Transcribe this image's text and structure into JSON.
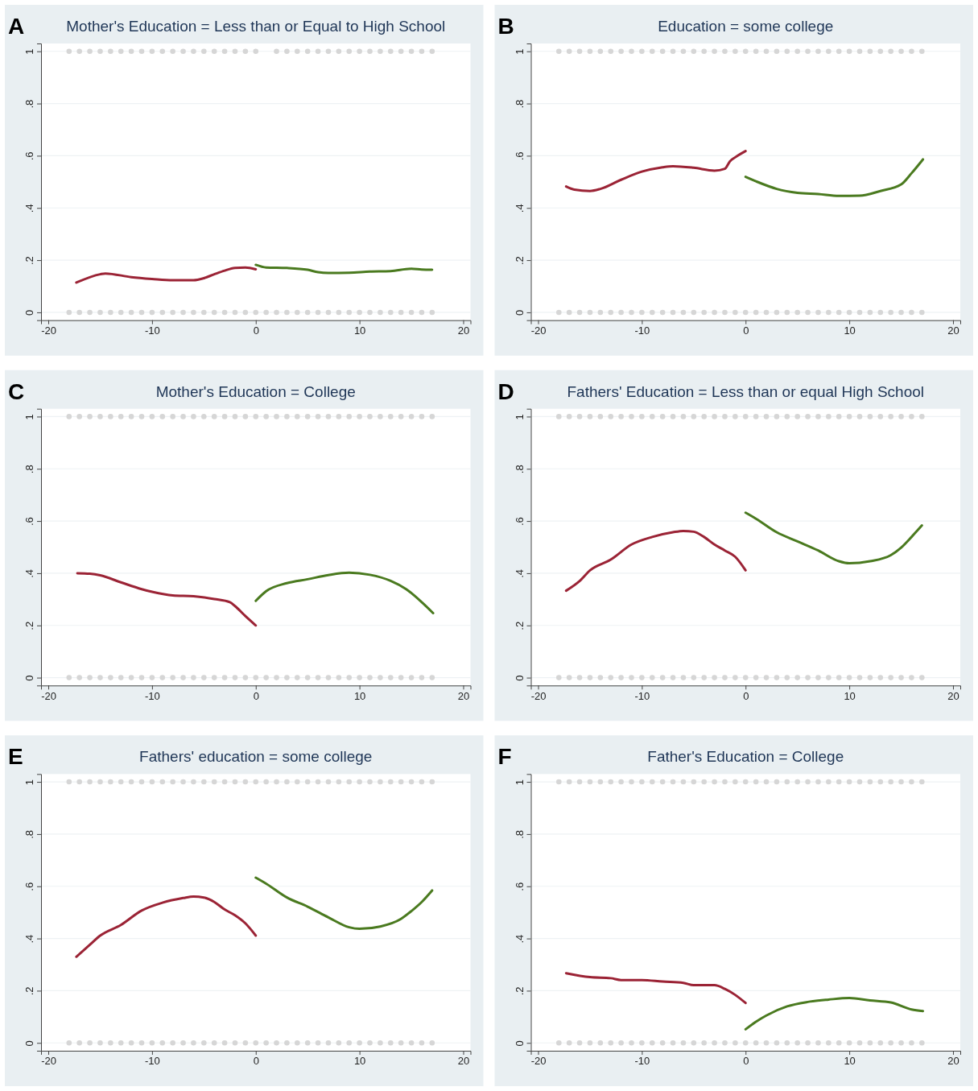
{
  "chart_data": [
    {
      "type": "line",
      "title": "Mother's Education = Less than or Equal to High School",
      "annotations": [
        "A"
      ],
      "xlim": [
        -20.7,
        20.7
      ],
      "ylim": [
        -0.03,
        1.03
      ],
      "xticks": [
        -20,
        -10,
        0,
        10,
        20
      ],
      "yticks": [
        {
          "value": 0,
          "label": "0"
        },
        {
          "value": 0.2,
          "label": ".2"
        },
        {
          "value": 0.4,
          "label": ".4"
        },
        {
          "value": 0.6,
          "label": ".6"
        },
        {
          "value": 0.8,
          "label": ".8"
        },
        {
          "value": 1,
          "label": "1"
        }
      ],
      "grid": "y",
      "series": [
        {
          "type": "scatter",
          "marker": "circle",
          "color": "#d6d6d6",
          "x": [
            -18,
            -17,
            -16,
            -15,
            -14,
            -13,
            -12,
            -11,
            -10,
            -9,
            -8,
            -7,
            -6,
            -5,
            -4,
            -3,
            -2,
            -1,
            0,
            2,
            3,
            4,
            5,
            6,
            7,
            8,
            9,
            10,
            11,
            12,
            13,
            14,
            15,
            16,
            17
          ],
          "values": [
            1,
            1,
            1,
            1,
            1,
            1,
            1,
            1,
            1,
            1,
            1,
            1,
            1,
            1,
            1,
            1,
            1,
            1,
            1,
            1,
            1,
            1,
            1,
            1,
            1,
            1,
            1,
            1,
            1,
            1,
            1,
            1,
            1,
            1,
            1
          ]
        },
        {
          "type": "scatter",
          "marker": "circle",
          "color": "#d6d6d6",
          "x": [
            -18,
            -17,
            -16,
            -15,
            -14,
            -13,
            -12,
            -11,
            -10,
            -9,
            -8,
            -7,
            -6,
            -5,
            -4,
            -3,
            -2,
            -1,
            0,
            1,
            2,
            3,
            4,
            5,
            6,
            7,
            8,
            9,
            10,
            11,
            12,
            13,
            14,
            15,
            16,
            17
          ],
          "values": [
            0,
            0,
            0,
            0,
            0,
            0,
            0,
            0,
            0,
            0,
            0,
            0,
            0,
            0,
            0,
            0,
            0,
            0,
            0,
            0,
            0,
            0,
            0,
            0,
            0,
            0,
            0,
            0,
            0,
            0,
            0,
            0,
            0,
            0,
            0,
            0
          ]
        },
        {
          "type": "line",
          "marker": "none",
          "color": "#9b2335",
          "x": [
            -17.3,
            -15,
            -14.5,
            -12,
            -10,
            -8,
            -6,
            -5,
            -4,
            -3,
            -2,
            -1,
            0
          ],
          "values": [
            0.114,
            0.146,
            0.149,
            0.135,
            0.128,
            0.123,
            0.123,
            0.131,
            0.146,
            0.16,
            0.17,
            0.172,
            0.165
          ]
        },
        {
          "type": "line",
          "marker": "none",
          "color": "#4a7a1f",
          "x": [
            0,
            1,
            3,
            5,
            6,
            7,
            9,
            11,
            13,
            15,
            16,
            17
          ],
          "values": [
            0.182,
            0.172,
            0.17,
            0.163,
            0.154,
            0.151,
            0.152,
            0.156,
            0.158,
            0.167,
            0.164,
            0.163
          ]
        }
      ]
    },
    {
      "type": "line",
      "title": "Education = some college",
      "annotations": [
        "B"
      ],
      "xlim": [
        -20.7,
        20.7
      ],
      "ylim": [
        -0.03,
        1.03
      ],
      "xticks": [
        -20,
        -10,
        0,
        10,
        20
      ],
      "yticks": [
        {
          "value": 0,
          "label": "0"
        },
        {
          "value": 0.2,
          "label": ".2"
        },
        {
          "value": 0.4,
          "label": ".4"
        },
        {
          "value": 0.6,
          "label": ".6"
        },
        {
          "value": 0.8,
          "label": ".8"
        },
        {
          "value": 1,
          "label": "1"
        }
      ],
      "grid": "y",
      "series": [
        {
          "type": "scatter",
          "marker": "circle",
          "color": "#d6d6d6",
          "x": [
            -18,
            -17,
            -16,
            -15,
            -14,
            -13,
            -12,
            -11,
            -10,
            -9,
            -8,
            -7,
            -6,
            -5,
            -4,
            -3,
            -2,
            -1,
            0,
            1,
            2,
            3,
            4,
            5,
            6,
            7,
            8,
            9,
            10,
            11,
            12,
            13,
            14,
            15,
            16,
            17
          ],
          "values": [
            1,
            1,
            1,
            1,
            1,
            1,
            1,
            1,
            1,
            1,
            1,
            1,
            1,
            1,
            1,
            1,
            1,
            1,
            1,
            1,
            1,
            1,
            1,
            1,
            1,
            1,
            1,
            1,
            1,
            1,
            1,
            1,
            1,
            1,
            1,
            1
          ]
        },
        {
          "type": "scatter",
          "marker": "circle",
          "color": "#d6d6d6",
          "x": [
            -18,
            -17,
            -16,
            -15,
            -14,
            -13,
            -12,
            -11,
            -10,
            -9,
            -8,
            -7,
            -6,
            -5,
            -4,
            -3,
            -2,
            -1,
            0,
            1,
            2,
            3,
            4,
            5,
            6,
            7,
            8,
            9,
            10,
            11,
            12,
            13,
            14,
            15,
            16,
            17
          ],
          "values": [
            0,
            0,
            0,
            0,
            0,
            0,
            0,
            0,
            0,
            0,
            0,
            0,
            0,
            0,
            0,
            0,
            0,
            0,
            0,
            0,
            0,
            0,
            0,
            0,
            0,
            0,
            0,
            0,
            0,
            0,
            0,
            0,
            0,
            0,
            0,
            0
          ]
        },
        {
          "type": "line",
          "marker": "none",
          "color": "#9b2335",
          "x": [
            -17.3,
            -16.5,
            -15,
            -14,
            -12,
            -10,
            -8,
            -7,
            -5,
            -3,
            -2,
            -1.5,
            -1,
            0
          ],
          "values": [
            0.482,
            0.47,
            0.465,
            0.473,
            0.508,
            0.539,
            0.556,
            0.56,
            0.554,
            0.543,
            0.55,
            0.579,
            0.594,
            0.618
          ]
        },
        {
          "type": "line",
          "marker": "none",
          "color": "#4a7a1f",
          "x": [
            0,
            1,
            3,
            5,
            7,
            9,
            11,
            13,
            15,
            16,
            17.1
          ],
          "values": [
            0.519,
            0.502,
            0.473,
            0.458,
            0.453,
            0.446,
            0.447,
            0.465,
            0.49,
            0.533,
            0.586
          ]
        }
      ]
    },
    {
      "type": "line",
      "title": "Mother's Education = College",
      "annotations": [
        "C"
      ],
      "xlim": [
        -20.7,
        20.7
      ],
      "ylim": [
        -0.03,
        1.03
      ],
      "xticks": [
        -20,
        -10,
        0,
        10,
        20
      ],
      "yticks": [
        {
          "value": 0,
          "label": "0"
        },
        {
          "value": 0.2,
          "label": ".2"
        },
        {
          "value": 0.4,
          "label": ".4"
        },
        {
          "value": 0.6,
          "label": ".6"
        },
        {
          "value": 0.8,
          "label": ".8"
        },
        {
          "value": 1,
          "label": "1"
        }
      ],
      "grid": "y",
      "series": [
        {
          "type": "scatter",
          "marker": "circle",
          "color": "#d6d6d6",
          "x": [
            -18,
            -17,
            -16,
            -15,
            -14,
            -13,
            -12,
            -11,
            -10,
            -9,
            -8,
            -7,
            -6,
            -5,
            -4,
            -3,
            -2,
            -1,
            0,
            1,
            2,
            3,
            4,
            5,
            6,
            7,
            8,
            9,
            10,
            11,
            12,
            13,
            14,
            15,
            16,
            17
          ],
          "values": [
            1,
            1,
            1,
            1,
            1,
            1,
            1,
            1,
            1,
            1,
            1,
            1,
            1,
            1,
            1,
            1,
            1,
            1,
            1,
            1,
            1,
            1,
            1,
            1,
            1,
            1,
            1,
            1,
            1,
            1,
            1,
            1,
            1,
            1,
            1,
            1
          ]
        },
        {
          "type": "scatter",
          "marker": "circle",
          "color": "#d6d6d6",
          "x": [
            -18,
            -17,
            -16,
            -15,
            -14,
            -13,
            -12,
            -11,
            -10,
            -9,
            -8,
            -7,
            -6,
            -5,
            -4,
            -3,
            -2,
            -1,
            0,
            1,
            2,
            3,
            4,
            5,
            6,
            7,
            8,
            9,
            10,
            11,
            12,
            13,
            14,
            15,
            16,
            17
          ],
          "values": [
            0,
            0,
            0,
            0,
            0,
            0,
            0,
            0,
            0,
            0,
            0,
            0,
            0,
            0,
            0,
            0,
            0,
            0,
            0,
            0,
            0,
            0,
            0,
            0,
            0,
            0,
            0,
            0,
            0,
            0,
            0,
            0,
            0,
            0,
            0,
            0
          ]
        },
        {
          "type": "line",
          "marker": "none",
          "color": "#9b2335",
          "x": [
            -17.2,
            -16,
            -15,
            -13,
            -11,
            -10,
            -8,
            -6,
            -4,
            -2.5,
            -2,
            -1,
            0
          ],
          "values": [
            0.4,
            0.398,
            0.392,
            0.365,
            0.339,
            0.329,
            0.315,
            0.312,
            0.301,
            0.289,
            0.274,
            0.236,
            0.2
          ]
        },
        {
          "type": "line",
          "marker": "none",
          "color": "#4a7a1f",
          "x": [
            0,
            1,
            3,
            5,
            7,
            9,
            11,
            13,
            14.5,
            16,
            17.1
          ],
          "values": [
            0.294,
            0.331,
            0.362,
            0.377,
            0.393,
            0.402,
            0.394,
            0.371,
            0.339,
            0.289,
            0.247
          ]
        }
      ]
    },
    {
      "type": "line",
      "title": "Fathers' Education = Less than or equal High School",
      "annotations": [
        "D"
      ],
      "xlim": [
        -20.7,
        20.7
      ],
      "ylim": [
        -0.03,
        1.03
      ],
      "xticks": [
        -20,
        -10,
        0,
        10,
        20
      ],
      "yticks": [
        {
          "value": 0,
          "label": "0"
        },
        {
          "value": 0.2,
          "label": ".2"
        },
        {
          "value": 0.4,
          "label": ".4"
        },
        {
          "value": 0.6,
          "label": ".6"
        },
        {
          "value": 0.8,
          "label": ".8"
        },
        {
          "value": 1,
          "label": "1"
        }
      ],
      "grid": "y",
      "series": [
        {
          "type": "scatter",
          "marker": "circle",
          "color": "#d6d6d6",
          "x": [
            -18,
            -17,
            -16,
            -15,
            -14,
            -13,
            -12,
            -11,
            -10,
            -9,
            -8,
            -7,
            -6,
            -5,
            -4,
            -3,
            -2,
            -1,
            0,
            1,
            2,
            3,
            4,
            5,
            6,
            7,
            8,
            9,
            10,
            11,
            12,
            13,
            14,
            15,
            16,
            17
          ],
          "values": [
            1,
            1,
            1,
            1,
            1,
            1,
            1,
            1,
            1,
            1,
            1,
            1,
            1,
            1,
            1,
            1,
            1,
            1,
            1,
            1,
            1,
            1,
            1,
            1,
            1,
            1,
            1,
            1,
            1,
            1,
            1,
            1,
            1,
            1,
            1,
            1
          ]
        },
        {
          "type": "scatter",
          "marker": "circle",
          "color": "#d6d6d6",
          "x": [
            -18,
            -17,
            -16,
            -15,
            -14,
            -13,
            -12,
            -11,
            -10,
            -9,
            -8,
            -7,
            -6,
            -5,
            -4,
            -3,
            -2,
            -1,
            0,
            1,
            2,
            3,
            4,
            5,
            6,
            7,
            8,
            9,
            10,
            11,
            12,
            13,
            14,
            15,
            16,
            17
          ],
          "values": [
            0,
            0,
            0,
            0,
            0,
            0,
            0,
            0,
            0,
            0,
            0,
            0,
            0,
            0,
            0,
            0,
            0,
            0,
            0,
            0,
            0,
            0,
            0,
            0,
            0,
            0,
            0,
            0,
            0,
            0,
            0,
            0,
            0,
            0,
            0,
            0
          ]
        },
        {
          "type": "line",
          "marker": "none",
          "color": "#9b2335",
          "x": [
            -17.3,
            -16,
            -15,
            -13,
            -11,
            -9,
            -7,
            -6,
            -5,
            -4,
            -3,
            -2,
            -1,
            0
          ],
          "values": [
            0.333,
            0.37,
            0.411,
            0.452,
            0.51,
            0.539,
            0.557,
            0.562,
            0.559,
            0.539,
            0.51,
            0.487,
            0.463,
            0.411
          ]
        },
        {
          "type": "line",
          "marker": "none",
          "color": "#4a7a1f",
          "x": [
            0,
            1,
            3,
            5,
            7,
            9,
            10,
            12,
            14,
            15,
            16,
            17
          ],
          "values": [
            0.632,
            0.609,
            0.557,
            0.522,
            0.487,
            0.446,
            0.438,
            0.446,
            0.469,
            0.498,
            0.539,
            0.583
          ]
        }
      ]
    },
    {
      "type": "line",
      "title": "Fathers' education = some college",
      "annotations": [
        "E"
      ],
      "xlim": [
        -20.7,
        20.7
      ],
      "ylim": [
        -0.03,
        1.03
      ],
      "xticks": [
        -20,
        -10,
        0,
        10,
        20
      ],
      "yticks": [
        {
          "value": 0,
          "label": "0"
        },
        {
          "value": 0.2,
          "label": ".2"
        },
        {
          "value": 0.4,
          "label": ".4"
        },
        {
          "value": 0.6,
          "label": ".6"
        },
        {
          "value": 0.8,
          "label": ".8"
        },
        {
          "value": 1,
          "label": "1"
        }
      ],
      "grid": "y",
      "series": [
        {
          "type": "scatter",
          "marker": "circle",
          "color": "#d6d6d6",
          "x": [
            -18,
            -17,
            -16,
            -15,
            -14,
            -13,
            -12,
            -11,
            -10,
            -9,
            -8,
            -7,
            -6,
            -5,
            -4,
            -3,
            -2,
            -1,
            0,
            1,
            2,
            3,
            4,
            5,
            6,
            7,
            8,
            9,
            10,
            11,
            12,
            13,
            14,
            15,
            16,
            17
          ],
          "values": [
            1,
            1,
            1,
            1,
            1,
            1,
            1,
            1,
            1,
            1,
            1,
            1,
            1,
            1,
            1,
            1,
            1,
            1,
            1,
            1,
            1,
            1,
            1,
            1,
            1,
            1,
            1,
            1,
            1,
            1,
            1,
            1,
            1,
            1,
            1,
            1
          ]
        },
        {
          "type": "scatter",
          "marker": "circle",
          "color": "#d6d6d6",
          "x": [
            -18,
            -17,
            -16,
            -15,
            -14,
            -13,
            -12,
            -11,
            -10,
            -9,
            -8,
            -7,
            -6,
            -5,
            -4,
            -3,
            -2,
            -1,
            0,
            1,
            2,
            3,
            4,
            5,
            6,
            7,
            8,
            9,
            10,
            11,
            12,
            13,
            14,
            15,
            16,
            17
          ],
          "values": [
            0,
            0,
            0,
            0,
            0,
            0,
            0,
            0,
            0,
            0,
            0,
            0,
            0,
            0,
            0,
            0,
            0,
            0,
            0,
            0,
            0,
            0,
            0,
            0,
            0,
            0,
            0,
            0,
            0,
            0,
            0,
            0,
            0,
            0,
            0,
            0
          ]
        },
        {
          "type": "line",
          "marker": "none",
          "color": "#9b2335",
          "x": [
            -17.3,
            -16,
            -15,
            -13,
            -11,
            -9,
            -7,
            -6,
            -5,
            -4,
            -3,
            -2,
            -1,
            0
          ],
          "values": [
            0.33,
            0.376,
            0.411,
            0.452,
            0.507,
            0.537,
            0.555,
            0.561,
            0.557,
            0.54,
            0.511,
            0.489,
            0.458,
            0.411
          ]
        },
        {
          "type": "line",
          "marker": "none",
          "color": "#4a7a1f",
          "x": [
            0,
            1,
            3,
            5,
            7,
            9,
            10,
            12,
            14,
            15,
            16,
            17
          ],
          "values": [
            0.633,
            0.61,
            0.557,
            0.522,
            0.481,
            0.443,
            0.437,
            0.446,
            0.475,
            0.505,
            0.54,
            0.584
          ]
        }
      ]
    },
    {
      "type": "line",
      "title": "Father's Education = College",
      "annotations": [
        "F"
      ],
      "xlim": [
        -20.7,
        20.7
      ],
      "ylim": [
        -0.03,
        1.03
      ],
      "xticks": [
        -20,
        -10,
        0,
        10,
        20
      ],
      "yticks": [
        {
          "value": 0,
          "label": "0"
        },
        {
          "value": 0.2,
          "label": ".2"
        },
        {
          "value": 0.4,
          "label": ".4"
        },
        {
          "value": 0.6,
          "label": ".6"
        },
        {
          "value": 0.8,
          "label": ".8"
        },
        {
          "value": 1,
          "label": "1"
        }
      ],
      "grid": "y",
      "series": [
        {
          "type": "scatter",
          "marker": "circle",
          "color": "#d6d6d6",
          "x": [
            -18,
            -17,
            -16,
            -15,
            -14,
            -13,
            -12,
            -11,
            -10,
            -9,
            -8,
            -7,
            -6,
            -5,
            -4,
            -3,
            -2,
            -1,
            0,
            1,
            2,
            3,
            4,
            5,
            6,
            7,
            8,
            9,
            10,
            11,
            12,
            13,
            14,
            15,
            16,
            17
          ],
          "values": [
            1,
            1,
            1,
            1,
            1,
            1,
            1,
            1,
            1,
            1,
            1,
            1,
            1,
            1,
            1,
            1,
            1,
            1,
            1,
            1,
            1,
            1,
            1,
            1,
            1,
            1,
            1,
            1,
            1,
            1,
            1,
            1,
            1,
            1,
            1,
            1
          ]
        },
        {
          "type": "scatter",
          "marker": "circle",
          "color": "#d6d6d6",
          "x": [
            -18,
            -17,
            -16,
            -15,
            -14,
            -13,
            -12,
            -11,
            -10,
            -9,
            -8,
            -7,
            -6,
            -5,
            -4,
            -3,
            -2,
            -1,
            0,
            1,
            2,
            3,
            4,
            5,
            6,
            7,
            8,
            9,
            10,
            11,
            12,
            13,
            14,
            15,
            16,
            17
          ],
          "values": [
            0,
            0,
            0,
            0,
            0,
            0,
            0,
            0,
            0,
            0,
            0,
            0,
            0,
            0,
            0,
            0,
            0,
            0,
            0,
            0,
            0,
            0,
            0,
            0,
            0,
            0,
            0,
            0,
            0,
            0,
            0,
            0,
            0,
            0,
            0,
            0
          ]
        },
        {
          "type": "line",
          "marker": "none",
          "color": "#9b2335",
          "x": [
            -17.3,
            -15,
            -13,
            -12,
            -10,
            -8,
            -6,
            -5,
            -3,
            -2,
            -1,
            0
          ],
          "values": [
            0.267,
            0.252,
            0.248,
            0.241,
            0.241,
            0.235,
            0.23,
            0.221,
            0.221,
            0.207,
            0.184,
            0.153
          ]
        },
        {
          "type": "line",
          "marker": "none",
          "color": "#4a7a1f",
          "x": [
            0,
            1,
            2,
            4,
            6,
            8,
            10,
            12,
            14,
            16,
            17.1
          ],
          "values": [
            0.052,
            0.081,
            0.105,
            0.14,
            0.157,
            0.166,
            0.172,
            0.163,
            0.155,
            0.128,
            0.122
          ]
        }
      ]
    }
  ]
}
